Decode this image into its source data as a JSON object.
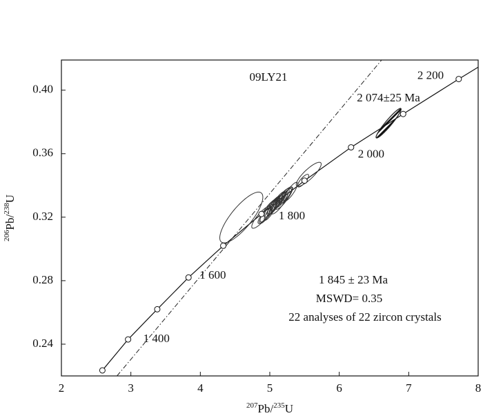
{
  "chart_data": {
    "type": "concordia",
    "sample": "09LY21",
    "annotations": [
      "1 845 ± 23 Ma",
      "MSWD= 0.35",
      "22 analyses of 22 zircon crystals"
    ],
    "highlight_label": "2 074±25 Ma",
    "xlabel": {
      "sup1": "207",
      "mid": "Pb/",
      "sup2": "235",
      "end": "U"
    },
    "ylabel": {
      "sup1": "206",
      "mid": "Pb/",
      "sup2": "238",
      "end": "U"
    },
    "xlim": [
      2,
      8
    ],
    "ylim": [
      0.22,
      0.419
    ],
    "xticks": [
      2,
      3,
      4,
      5,
      6,
      7,
      8
    ],
    "yticks": [
      0.24,
      0.28,
      0.32,
      0.36,
      {
        "value": 0.4,
        "label": "0.40"
      }
    ],
    "curve": {
      "x": [
        2.59,
        2.96,
        3.38,
        3.83,
        4.33,
        4.88,
        5.5,
        6.17,
        6.92,
        7.72,
        8.0
      ],
      "y": [
        0.2235,
        0.243,
        0.262,
        0.282,
        0.302,
        0.322,
        0.343,
        0.364,
        0.385,
        0.407,
        0.4145
      ]
    },
    "markers": {
      "x": [
        2.59,
        2.96,
        3.38,
        3.83,
        4.33,
        4.88,
        5.5,
        6.17,
        6.92,
        7.72
      ],
      "y": [
        0.2235,
        0.243,
        0.262,
        0.282,
        0.302,
        0.322,
        0.343,
        0.364,
        0.385,
        0.407
      ],
      "labels": [
        null,
        "1 400",
        null,
        "1 600",
        null,
        "1 800",
        null,
        "2 000",
        null,
        "2 200"
      ]
    },
    "discordia": {
      "x": [
        2.8,
        6.61
      ],
      "y": [
        0.22,
        0.419
      ]
    },
    "ellipses": [
      {
        "x": 4.59,
        "y": 0.3198,
        "x_err": 0.31,
        "y_err": 0.016,
        "rho": 0.8
      },
      {
        "x": 6.71,
        "y": 0.3792,
        "x_err": 0.18,
        "y_err": 0.0093,
        "rho": 0.95,
        "highlight": true
      },
      {
        "x": 5.56,
        "y": 0.347,
        "x_err": 0.18,
        "y_err": 0.0076,
        "rho": 0.85
      },
      {
        "x": 5.48,
        "y": 0.343,
        "x_err": 0.08,
        "y_err": 0.004,
        "rho": 0.8
      },
      {
        "x": 4.88,
        "y": 0.32,
        "x_err": 0.14,
        "y_err": 0.007,
        "rho": 0.85
      },
      {
        "x": 4.95,
        "y": 0.322,
        "x_err": 0.1,
        "y_err": 0.006,
        "rho": 0.85
      },
      {
        "x": 4.98,
        "y": 0.324,
        "x_err": 0.12,
        "y_err": 0.007,
        "rho": 0.85
      },
      {
        "x": 5.02,
        "y": 0.326,
        "x_err": 0.1,
        "y_err": 0.006,
        "rho": 0.85
      },
      {
        "x": 5.05,
        "y": 0.327,
        "x_err": 0.09,
        "y_err": 0.006,
        "rho": 0.85
      },
      {
        "x": 5.08,
        "y": 0.328,
        "x_err": 0.11,
        "y_err": 0.006,
        "rho": 0.85
      },
      {
        "x": 5.1,
        "y": 0.329,
        "x_err": 0.08,
        "y_err": 0.005,
        "rho": 0.85
      },
      {
        "x": 5.12,
        "y": 0.33,
        "x_err": 0.1,
        "y_err": 0.006,
        "rho": 0.85
      },
      {
        "x": 5.15,
        "y": 0.331,
        "x_err": 0.09,
        "y_err": 0.005,
        "rho": 0.85
      },
      {
        "x": 5.18,
        "y": 0.332,
        "x_err": 0.1,
        "y_err": 0.006,
        "rho": 0.85
      },
      {
        "x": 5.22,
        "y": 0.333,
        "x_err": 0.09,
        "y_err": 0.005,
        "rho": 0.85
      },
      {
        "x": 5.25,
        "y": 0.334,
        "x_err": 0.08,
        "y_err": 0.005,
        "rho": 0.85
      },
      {
        "x": 5.3,
        "y": 0.336,
        "x_err": 0.1,
        "y_err": 0.006,
        "rho": 0.85
      },
      {
        "x": 5.0,
        "y": 0.323,
        "x_err": 0.08,
        "y_err": 0.005,
        "rho": 0.85
      },
      {
        "x": 5.07,
        "y": 0.327,
        "x_err": 0.08,
        "y_err": 0.005,
        "rho": 0.85
      },
      {
        "x": 5.14,
        "y": 0.329,
        "x_err": 0.12,
        "y_err": 0.007,
        "rho": 0.85
      },
      {
        "x": 5.2,
        "y": 0.332,
        "x_err": 0.12,
        "y_err": 0.007,
        "rho": 0.85
      },
      {
        "x": 4.92,
        "y": 0.321,
        "x_err": 0.09,
        "y_err": 0.005,
        "rho": 0.85
      }
    ]
  }
}
